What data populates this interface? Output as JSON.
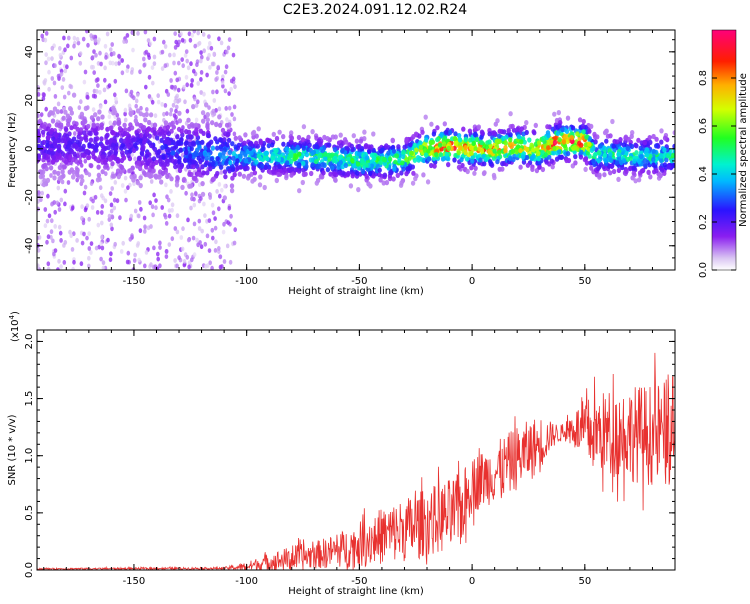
{
  "title": "C2E3.2024.091.12.02.R24",
  "chart_data": [
    {
      "type": "heatmap",
      "xlabel": "Height of straight line (km)",
      "ylabel": "Frequency (Hz)",
      "xlim": [
        -193,
        90
      ],
      "ylim": [
        -50,
        49
      ],
      "x_ticks": [
        -150,
        -100,
        -50,
        0,
        50
      ],
      "x_tick_labels": [
        "-150",
        "-100",
        "-50",
        "0",
        "50"
      ],
      "y_ticks": [
        -40,
        -20,
        0,
        20,
        40
      ],
      "y_tick_labels": [
        "-40",
        "-20",
        "0",
        "20",
        "40"
      ],
      "colorbar": {
        "label": "Normalized spectral amplitude",
        "range": [
          0,
          1
        ],
        "ticks": [
          0.0,
          0.2,
          0.4,
          0.6,
          0.8
        ],
        "tick_labels": [
          "0.0",
          "0.2",
          "0.4",
          "0.6",
          "0.8"
        ],
        "colormap": "rainbow (white-violet-blue-cyan-green-yellow-orange-red-magenta)"
      },
      "ridge": {
        "x": [
          -193,
          -150,
          -105,
          -90,
          -75,
          -60,
          -50,
          -40,
          -30,
          -20,
          -10,
          0,
          10,
          20,
          30,
          35,
          40,
          45,
          50,
          55,
          60,
          70,
          80,
          90
        ],
        "center_hz": [
          2,
          1,
          -3,
          -3,
          -3,
          -4,
          -5,
          -5,
          -4,
          0,
          1,
          0,
          0,
          1,
          0,
          2,
          3,
          3,
          3,
          -3,
          -2,
          -3,
          -3,
          -3
        ],
        "peak_amplitude": [
          0.15,
          0.15,
          0.35,
          0.45,
          0.5,
          0.5,
          0.5,
          0.5,
          0.55,
          0.75,
          0.9,
          0.85,
          0.8,
          0.75,
          0.8,
          0.9,
          0.95,
          0.95,
          0.9,
          0.45,
          0.45,
          0.45,
          0.45,
          0.45
        ]
      },
      "scatter_region_xlim": [
        -193,
        -105
      ],
      "grid": false
    },
    {
      "type": "line",
      "xlabel": "Height of straight line (km)",
      "ylabel": "SNR (10 * v/v)",
      "y_scale_label": "(x10",
      "y_scale_exponent": "4",
      "y_scale_suffix": ")",
      "xlim": [
        -193,
        90
      ],
      "ylim": [
        0,
        21000
      ],
      "x_ticks": [
        -150,
        -100,
        -50,
        0,
        50
      ],
      "x_tick_labels": [
        "-150",
        "-100",
        "-50",
        "0",
        "50"
      ],
      "y_ticks": [
        0,
        5000,
        10000,
        15000,
        20000
      ],
      "y_tick_labels": [
        "0.0",
        "0.5",
        "1.0",
        "1.5",
        "2.0"
      ],
      "color": "#e8312f",
      "envelope": {
        "x": [
          -193,
          -110,
          -100,
          -90,
          -80,
          -70,
          -60,
          -50,
          -40,
          -30,
          -20,
          -10,
          -5,
          0,
          10,
          20,
          30,
          35,
          40,
          45,
          50,
          60,
          70,
          80,
          90
        ],
        "mean": [
          100,
          150,
          300,
          700,
          1000,
          1300,
          1700,
          2200,
          3000,
          3500,
          4200,
          4800,
          5200,
          7500,
          8500,
          9800,
          11000,
          11800,
          12000,
          12500,
          12000,
          12000,
          12000,
          11800,
          12000
        ],
        "spread": [
          60,
          100,
          400,
          800,
          1100,
          1200,
          1500,
          2000,
          2500,
          2800,
          3000,
          3200,
          3300,
          2500,
          2600,
          2800,
          2600,
          1200,
          700,
          1500,
          3000,
          3800,
          4200,
          4500,
          5000
        ]
      },
      "series": [
        {
          "values_described_by": "envelope"
        }
      ],
      "grid": false
    }
  ]
}
